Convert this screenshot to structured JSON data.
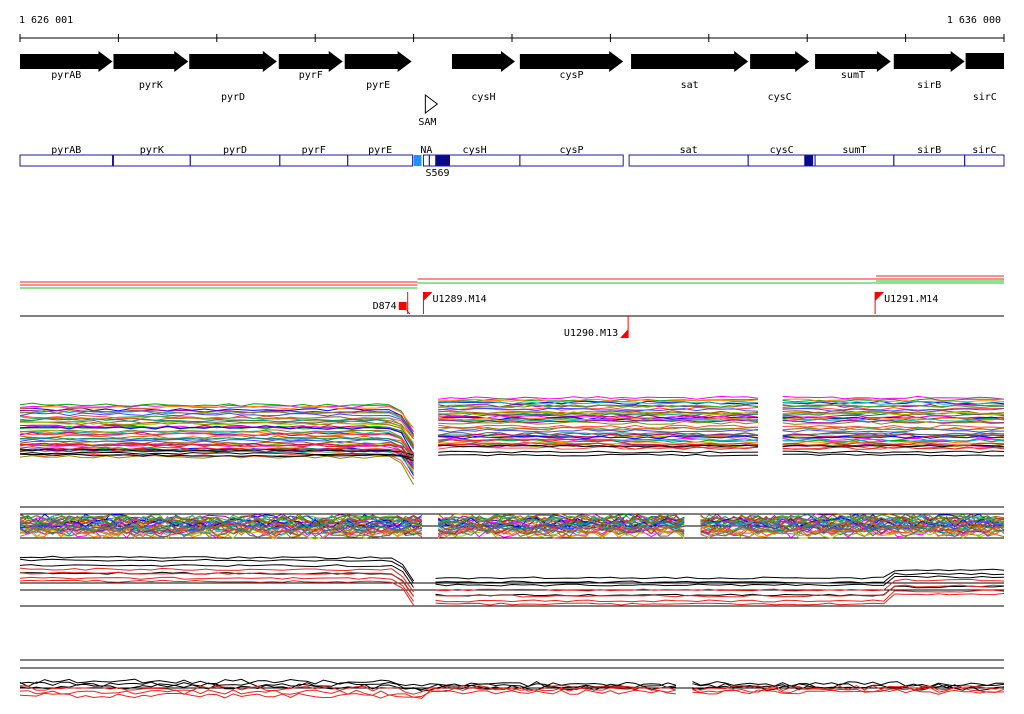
{
  "coords": {
    "start": "1 626 001",
    "end": "1 636 000"
  },
  "range": {
    "from": 0,
    "to": 10000
  },
  "gene_track": [
    {
      "name": "pyrAB",
      "from": 0,
      "to": 940,
      "label_row": 0
    },
    {
      "name": "pyrK",
      "from": 950,
      "to": 1710,
      "label_row": 1
    },
    {
      "name": "pyrD",
      "from": 1720,
      "to": 2610,
      "label_row": 2
    },
    {
      "name": "pyrF",
      "from": 2630,
      "to": 3280,
      "label_row": 0
    },
    {
      "name": "pyrE",
      "from": 3300,
      "to": 3980,
      "label_row": 1
    },
    {
      "name": "cysH",
      "from": 4390,
      "to": 5030,
      "label_row": 2
    },
    {
      "name": "cysP",
      "from": 5080,
      "to": 6130,
      "label_row": 0
    },
    {
      "name": "sat",
      "from": 6210,
      "to": 7400,
      "label_row": 1
    },
    {
      "name": "cysC",
      "from": 7420,
      "to": 8020,
      "label_row": 2
    },
    {
      "name": "sumT",
      "from": 8080,
      "to": 8850,
      "label_row": 0
    },
    {
      "name": "sirB",
      "from": 8880,
      "to": 9600,
      "label_row": 1
    },
    {
      "name": "sirC",
      "from": 9610,
      "to": 10000,
      "label_row": 2
    }
  ],
  "riboswitch": {
    "name": "SAM",
    "at": 4160
  },
  "annotation_track": [
    {
      "name": "pyrAB",
      "from": 0,
      "to": 940
    },
    {
      "name": "pyrK",
      "from": 950,
      "to": 1730
    },
    {
      "name": "pyrD",
      "from": 1730,
      "to": 2640
    },
    {
      "name": "pyrF",
      "from": 2640,
      "to": 3330
    },
    {
      "name": "pyrE",
      "from": 3330,
      "to": 3990
    },
    {
      "name": "NA",
      "from": 4100,
      "to": 4160
    },
    {
      "name": "cysH",
      "from": 4160,
      "to": 5080
    },
    {
      "name": "cysP",
      "from": 5080,
      "to": 6130
    },
    {
      "name": "sat",
      "from": 6190,
      "to": 7400
    },
    {
      "name": "cysC",
      "from": 7400,
      "to": 8080
    },
    {
      "name": "sumT",
      "from": 8080,
      "to": 8880
    },
    {
      "name": "sirB",
      "from": 8880,
      "to": 9600
    },
    {
      "name": "sirC",
      "from": 9600,
      "to": 10000
    }
  ],
  "annotation_marks": [
    {
      "from": 4000,
      "to": 4080,
      "color": "#1e90ff"
    },
    {
      "from": 4220,
      "to": 4370,
      "color": "#0a0a8c"
    },
    {
      "from": 7970,
      "to": 8060,
      "color": "#0a0a8c"
    }
  ],
  "annotation_feature_label": {
    "name": "S569",
    "at": 4080
  },
  "tss_markers": [
    {
      "name": "D874",
      "at": 3940,
      "level": 0,
      "side": "left"
    },
    {
      "name": "U1289.M14",
      "at": 4100,
      "level": 0,
      "side": "right"
    },
    {
      "name": "U1290.M13",
      "at": 6180,
      "level": 1,
      "side": "left"
    },
    {
      "name": "U1291.M14",
      "at": 8690,
      "level": 0,
      "side": "right"
    }
  ],
  "colors": {
    "gene_arrow": "#000000",
    "annotation_outline": "#1a1aaa",
    "marker": "#ff0000",
    "line_red": "#e8261c",
    "line_green": "#22c022",
    "palette": [
      "#ff00ff",
      "#00aa00",
      "#0000ff",
      "#ff8800",
      "#00bbbb",
      "#aa00aa",
      "#888800",
      "#ff4444",
      "#44aa44",
      "#4444ff",
      "#cc6600",
      "#008888",
      "#666666",
      "#aa5500",
      "#99cc00",
      "#cc0066"
    ]
  }
}
